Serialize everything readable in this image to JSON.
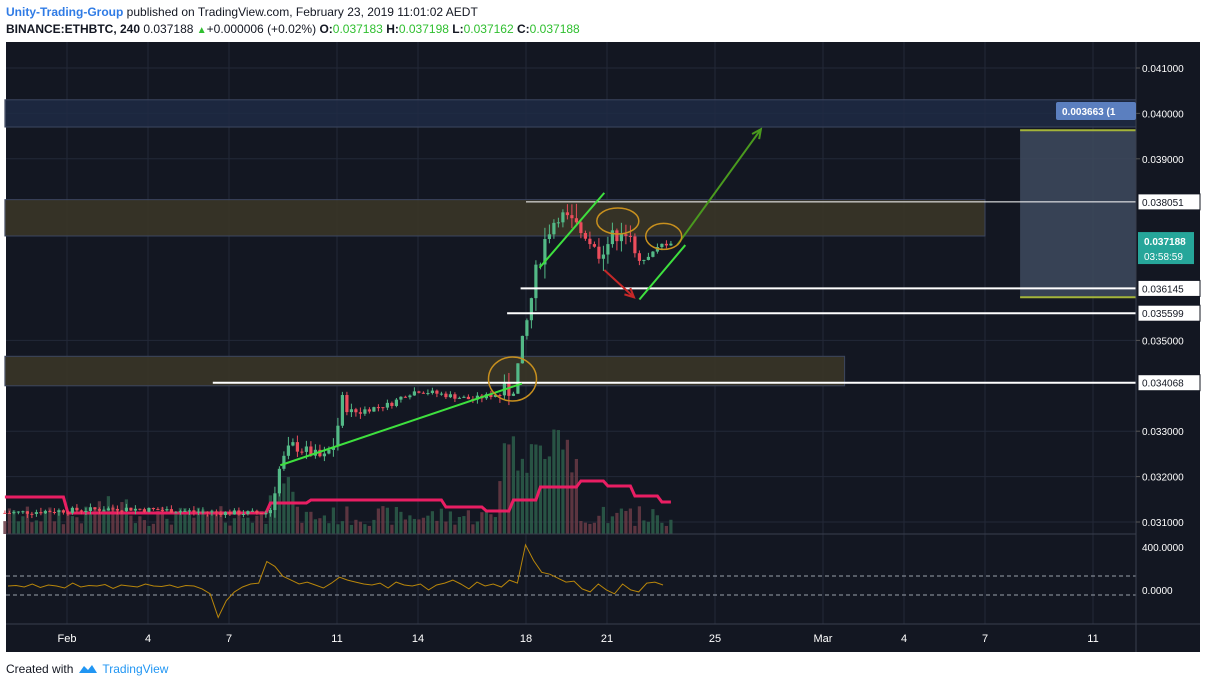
{
  "header": {
    "publisher": "Unity-Trading-Group",
    "published_text": "published on TradingView.com, February 23, 2019 11:01:02 AEDT",
    "symbol": "BINANCE:ETHBTC, 240",
    "last": "0.037188",
    "change": "+0.000006 (+0.02%)",
    "o_label": "O:",
    "o": "0.037183",
    "h_label": "H:",
    "h": "0.037198",
    "l_label": "L:",
    "l": "0.037162",
    "c_label": "C:",
    "c": "0.037188"
  },
  "footer": {
    "created_with": "Created with",
    "brand": "TradingView"
  },
  "colors": {
    "background": "#131722",
    "up": "#53b987",
    "down": "#eb4d5c",
    "volume_ma": "#e91e63",
    "trendline": "#3ee03e",
    "arrow_up": "#4a9a1e",
    "arrow_down": "#c62828",
    "zone": "#3a3527",
    "zone_blue": "#1e2a44",
    "target_box": "#3e4a5e",
    "oscillator": "#b8860b",
    "price_tag": "#26a69a",
    "measure_tag": "#5b7fbf"
  },
  "chart_data": {
    "type": "candlestick",
    "symbol": "BINANCE:ETHBTC",
    "interval": "240",
    "ylim": [
      0.03085,
      0.0415
    ],
    "price_ticks": [
      "0.041000",
      "0.040000",
      "0.039000",
      "0.037188",
      "0.036145",
      "0.035599",
      "0.035000",
      "0.034068",
      "0.033000",
      "0.032000",
      "0.031000"
    ],
    "axis_ticks": [
      "0.041000",
      "0.040000",
      "0.039000",
      "0.035000",
      "0.033000",
      "0.032000",
      "0.031000"
    ],
    "x_ticks": [
      "Feb",
      "4",
      "7",
      "11",
      "14",
      "18",
      "21",
      "25",
      "Mar",
      "4",
      "7",
      "11"
    ],
    "x_tick_days": [
      1,
      4,
      7,
      11,
      14,
      18,
      21,
      25,
      29,
      32,
      35,
      39
    ],
    "price_lines": [
      {
        "label": "0.038051",
        "value": 0.038051
      },
      {
        "label": "0.036145",
        "value": 0.036145
      },
      {
        "label": "0.035599",
        "value": 0.035599
      },
      {
        "label": "0.034068",
        "value": 0.034068
      }
    ],
    "current_price": {
      "label": "0.037188",
      "countdown": "03:58:59",
      "value": 0.037188
    },
    "measure_label": "0.003663 (1",
    "zones": [
      {
        "from_day": -1.3,
        "to_day": 35.0,
        "low": 0.0373,
        "high": 0.0381
      },
      {
        "from_day": -1.3,
        "to_day": 29.8,
        "low": 0.034,
        "high": 0.03465
      },
      {
        "from_day": -1.3,
        "to_day": 45.0,
        "low": 0.0397,
        "high": 0.0403
      }
    ],
    "measure_box": {
      "from_day": 36.3,
      "to_day": 42.0,
      "low": 0.03595,
      "high": 0.03963
    },
    "trendlines": [
      {
        "d1": 8.9,
        "p1": 0.03225,
        "d2": 17.85,
        "p2": 0.03405
      },
      {
        "d1": 18.5,
        "p1": 0.0366,
        "d2": 20.9,
        "p2": 0.03825
      },
      {
        "d1": 22.2,
        "p1": 0.0359,
        "d2": 23.9,
        "p2": 0.0371
      }
    ],
    "arrows": [
      {
        "d1": 23.6,
        "p1": 0.0371,
        "d2": 26.7,
        "p2": 0.03965,
        "kind": "up"
      },
      {
        "d1": 20.9,
        "p1": 0.03655,
        "d2": 22.0,
        "p2": 0.03595,
        "kind": "down"
      }
    ],
    "circles": [
      {
        "day": 17.5,
        "price": 0.03415,
        "rx": 24,
        "ry": 22
      },
      {
        "day": 21.4,
        "price": 0.03763,
        "rx": 21,
        "ry": 13
      },
      {
        "day": 23.1,
        "price": 0.03729,
        "rx": 18,
        "ry": 13
      }
    ],
    "oscillator_ticks": [
      "400.0000",
      "0.0000"
    ],
    "oscillator_values": [
      0,
      5,
      -10,
      20,
      -15,
      10,
      0,
      -20,
      30,
      -10,
      5,
      0,
      15,
      -25,
      10,
      0,
      -10,
      20,
      0,
      -5,
      10,
      -15,
      5,
      0,
      -30,
      -80,
      -320,
      -150,
      -60,
      -10,
      20,
      30,
      250,
      200,
      100,
      60,
      20,
      40,
      10,
      -20,
      30,
      90,
      60,
      40,
      20,
      10,
      30,
      -20,
      40,
      10,
      0,
      20,
      -40,
      10,
      30,
      60,
      20,
      -30,
      40,
      0,
      20,
      -10,
      60,
      30,
      420,
      260,
      140,
      120,
      80,
      40,
      50,
      -30,
      -60,
      20,
      -40,
      -80,
      20,
      -40,
      -60,
      30,
      40,
      10
    ]
  }
}
